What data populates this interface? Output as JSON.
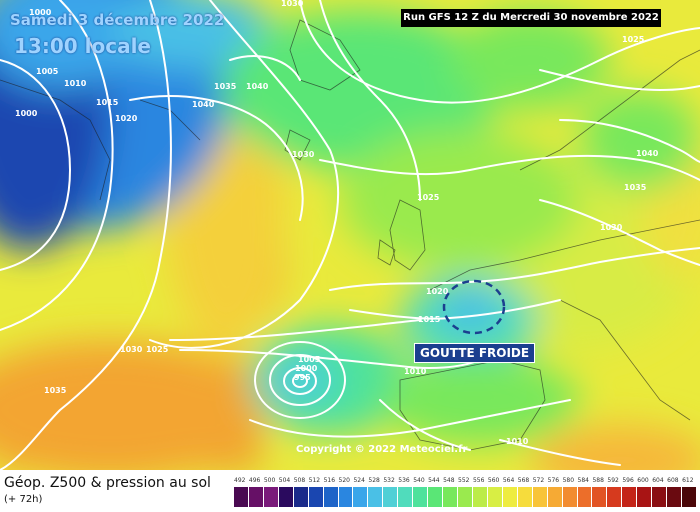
{
  "header": {
    "date": "Samedi 3 décembre 2022",
    "time": "13:00 locale",
    "run": "Run GFS 12 Z du Mercredi 30 novembre 2022"
  },
  "annotation": {
    "label": "GOUTTE FROIDE"
  },
  "copyright": "Copyright © 2022 Meteociel.fr",
  "footer": {
    "title": "Géop. Z500 & pression au sol",
    "subtitle": "(+ 72h)"
  },
  "legend": {
    "values": [
      "492",
      "496",
      "500",
      "504",
      "508",
      "512",
      "516",
      "520",
      "524",
      "528",
      "532",
      "536",
      "540",
      "544",
      "548",
      "552",
      "556",
      "560",
      "564",
      "568",
      "572",
      "576",
      "580",
      "584",
      "588",
      "592",
      "596",
      "600",
      "604",
      "608",
      "612"
    ],
    "colors": [
      "#4a0a52",
      "#661066",
      "#7a1a7a",
      "#2a0a5e",
      "#1a2a8a",
      "#1a46b0",
      "#1e64c8",
      "#2a86e0",
      "#3aa6ea",
      "#4ac0e6",
      "#50d0d6",
      "#50dcbc",
      "#4ee29c",
      "#5ae676",
      "#78e85c",
      "#9aea4e",
      "#bcec48",
      "#d8ee44",
      "#eeec40",
      "#f6dc3c",
      "#f8c438",
      "#f6aa34",
      "#f28c30",
      "#ec6e2a",
      "#e25424",
      "#d63a1e",
      "#c42418",
      "#a81414",
      "#8a0e12",
      "#6a0a10",
      "#4a0608"
    ]
  },
  "isobars": [
    "1000",
    "1005",
    "1010",
    "1015",
    "1020",
    "1000",
    "1035",
    "1040",
    "1040",
    "1030",
    "1025",
    "1030",
    "1040",
    "1035",
    "1030",
    "1025",
    "1020",
    "1015",
    "1010",
    "1005",
    "1000",
    "995",
    "1030",
    "1025",
    "1035",
    "1010"
  ],
  "colors": {
    "run_bg": "#000000",
    "goutte_bg": "#1b3f8f",
    "date_text": "#9fd3ff"
  }
}
